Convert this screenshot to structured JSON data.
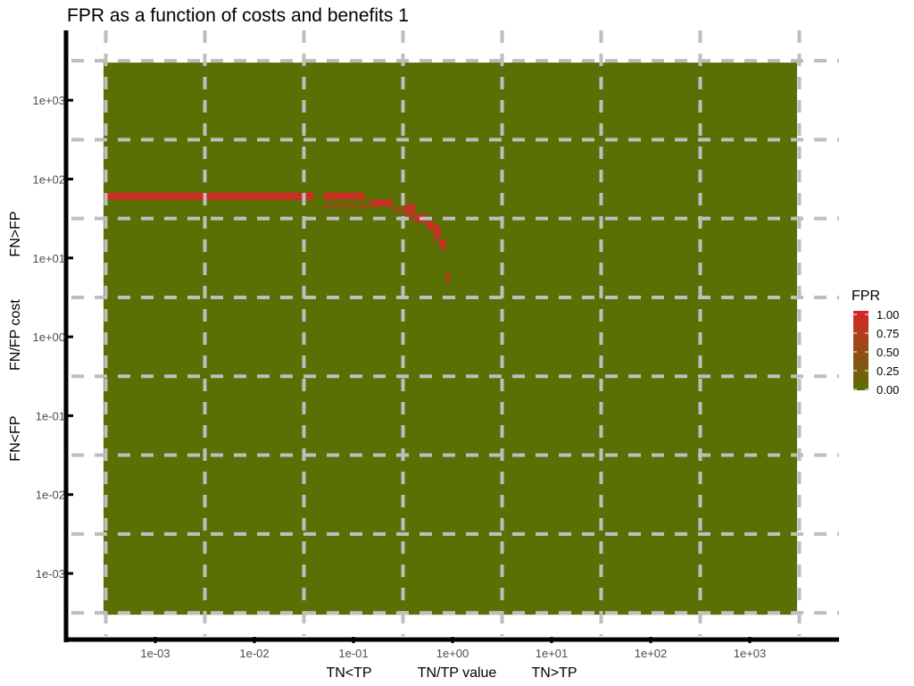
{
  "chart_data": {
    "type": "heatmap",
    "title": "FPR as a function of costs and benefits 1",
    "xlabel": {
      "left": "TN<TP",
      "center": "TN/TP value",
      "right": "TN>TP"
    },
    "ylabel": {
      "low": "FN<FP",
      "center": "FN/FP cost",
      "high": "FN>FP"
    },
    "x_scale": "log10",
    "y_scale": "log10",
    "x_ticks": [
      {
        "value": 0.001,
        "label": "1e-03"
      },
      {
        "value": 0.01,
        "label": "1e-02"
      },
      {
        "value": 0.1,
        "label": "1e-01"
      },
      {
        "value": 1,
        "label": "1e+00"
      },
      {
        "value": 10,
        "label": "1e+01"
      },
      {
        "value": 100,
        "label": "1e+02"
      },
      {
        "value": 1000,
        "label": "1e+03"
      }
    ],
    "y_ticks": [
      {
        "value": 0.001,
        "label": "1e-03"
      },
      {
        "value": 0.01,
        "label": "1e-02"
      },
      {
        "value": 0.1,
        "label": "1e-01"
      },
      {
        "value": 1,
        "label": "1e+00"
      },
      {
        "value": 10,
        "label": "1e+01"
      },
      {
        "value": 100,
        "label": "1e+02"
      },
      {
        "value": 1000,
        "label": "1e+03"
      }
    ],
    "xlim": [
      0.0003,
      3000
    ],
    "ylim": [
      0.0003,
      3000
    ],
    "grid": "dashed, at half-decade positions",
    "background_value": 0,
    "fill_range": [
      0.0003,
      3000
    ],
    "legend": {
      "title": "FPR",
      "position": "right",
      "ticks": [
        {
          "value": 1.0,
          "label": "1.00"
        },
        {
          "value": 0.75,
          "label": "0.75"
        },
        {
          "value": 0.5,
          "label": "0.50"
        },
        {
          "value": 0.25,
          "label": "0.25"
        },
        {
          "value": 0.0,
          "label": "0.00"
        }
      ],
      "color_low": "#5a7005",
      "color_high": "#d62728"
    },
    "cells": [
      {
        "x0": 0.0003,
        "x1": 0.04,
        "y0": 55,
        "y1": 67,
        "value": 0.95
      },
      {
        "x0": 0.05,
        "x1": 0.085,
        "y0": 55,
        "y1": 67,
        "value": 0.95
      },
      {
        "x0": 0.085,
        "x1": 0.13,
        "y0": 55,
        "y1": 67,
        "value": 0.9
      },
      {
        "x0": 0.05,
        "x1": 0.15,
        "y0": 42,
        "y1": 50,
        "value": 0.3
      },
      {
        "x0": 0.15,
        "x1": 0.25,
        "y0": 45,
        "y1": 55,
        "value": 0.9
      },
      {
        "x0": 0.25,
        "x1": 0.33,
        "y0": 36,
        "y1": 45,
        "value": 0.35
      },
      {
        "x0": 0.33,
        "x1": 0.42,
        "y0": 38,
        "y1": 48,
        "value": 0.9
      },
      {
        "x0": 0.33,
        "x1": 0.42,
        "y0": 30,
        "y1": 38,
        "value": 0.55
      },
      {
        "x0": 0.42,
        "x1": 0.55,
        "y0": 28,
        "y1": 36,
        "value": 0.85
      },
      {
        "x0": 0.55,
        "x1": 0.65,
        "y0": 23,
        "y1": 29,
        "value": 0.95
      },
      {
        "x0": 0.65,
        "x1": 0.75,
        "y0": 19,
        "y1": 26,
        "value": 0.95
      },
      {
        "x0": 0.65,
        "x1": 0.75,
        "y0": 16,
        "y1": 19,
        "value": 0.6
      },
      {
        "x0": 0.75,
        "x1": 0.85,
        "y0": 13,
        "y1": 17,
        "value": 0.95
      },
      {
        "x0": 0.85,
        "x1": 0.95,
        "y0": 5,
        "y1": 6.5,
        "value": 0.65
      }
    ]
  }
}
